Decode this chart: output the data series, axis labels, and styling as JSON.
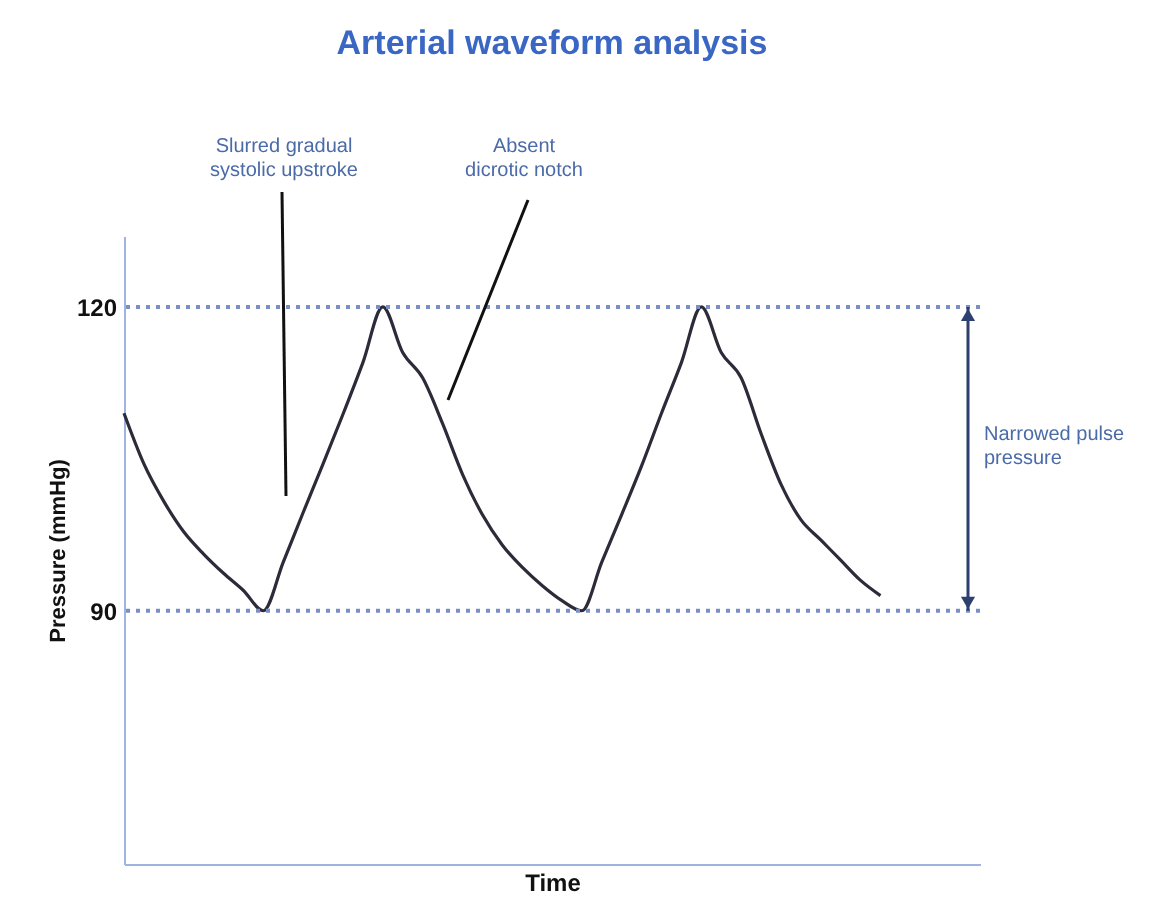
{
  "chart_data": {
    "type": "line",
    "title": "Arterial waveform analysis",
    "xlabel": "Time",
    "ylabel": "Pressure (mmHg)",
    "categories": [
      null,
      null,
      null,
      null,
      null,
      null,
      null,
      null,
      null,
      null,
      null,
      null,
      null,
      null,
      null,
      null,
      null,
      null,
      null,
      null,
      null,
      null,
      null,
      null,
      null,
      null,
      null,
      null,
      null,
      null,
      null,
      null,
      null,
      null,
      null,
      null,
      null,
      null,
      null,
      null,
      null,
      null,
      null,
      null
    ],
    "series": [
      {
        "color": "#2b2b3a",
        "values": [
          109.5,
          104.5,
          100.8,
          97.8,
          95.6,
          93.7,
          92,
          90,
          94.8,
          99.7,
          104.5,
          109.4,
          114.5,
          120,
          115.5,
          113,
          108.5,
          103.5,
          99.5,
          96.5,
          94.3,
          92.5,
          91,
          90,
          94.8,
          99.5,
          104.3,
          109.5,
          114.5,
          120,
          115.5,
          113,
          107.5,
          102.5,
          99,
          97,
          95,
          93,
          91.5,
          null,
          null,
          null,
          null,
          null
        ]
      }
    ],
    "ylim": [
      65,
      127
    ],
    "yticks": [
      90,
      120
    ],
    "tick_labels": "y",
    "ref_lines": [
      {
        "axis": "y",
        "value": 120,
        "color": "#7b8fc7",
        "line_style": "dotted"
      },
      {
        "axis": "y",
        "value": 90,
        "color": "#7b8fc7",
        "line_style": "dotted"
      }
    ],
    "annotations": [
      "Slurred gradual systolic upstroke",
      "Absent dicrotic notch",
      "Narrowed pulse pressure"
    ]
  }
}
